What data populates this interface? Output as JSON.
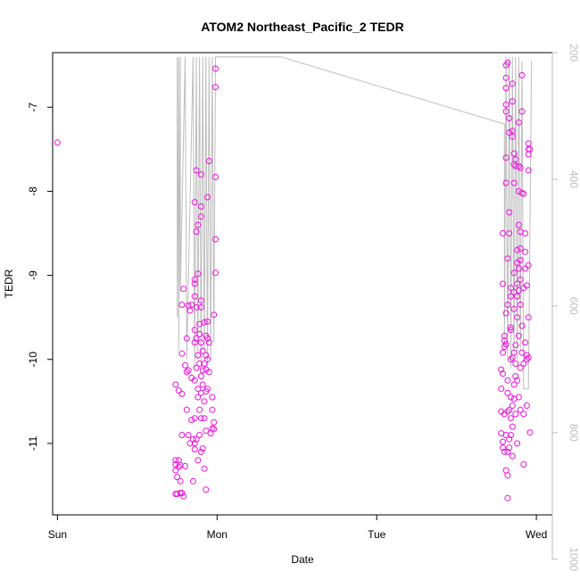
{
  "chart_data": {
    "type": "scatter",
    "title": "ATOM2 Northeast_Pacific_2 TEDR",
    "xlabel": "Date",
    "ylabel": "TEDR",
    "x_ticks": [
      "Sun",
      "Mon",
      "Tue",
      "Wed"
    ],
    "y_ticks": [
      -7,
      -8,
      -9,
      -10,
      -11
    ],
    "y_right_ticks": [
      200,
      400,
      600,
      800,
      1000
    ],
    "xlim": [
      -0.03,
      3.1
    ],
    "ylim": [
      -11.85,
      -6.35
    ],
    "y_right_lim": [
      930,
      200
    ],
    "grid": false,
    "colors": {
      "points": "#ee11dd",
      "line": "#bdbdbd",
      "axis": "#000000",
      "right_axis": "#bdbdbd"
    },
    "series": [
      {
        "values": [
          [
            0.0,
            -7.42
          ],
          [
            0.74,
            -10.3
          ],
          [
            0.74,
            -11.2
          ],
          [
            0.74,
            -11.25
          ],
          [
            0.74,
            -11.32
          ],
          [
            0.74,
            -11.6
          ],
          [
            0.75,
            -11.4
          ],
          [
            0.75,
            -11.6
          ],
          [
            0.76,
            -10.37
          ],
          [
            0.76,
            -11.2
          ],
          [
            0.76,
            -11.28
          ],
          [
            0.77,
            -11.45
          ],
          [
            0.77,
            -11.59
          ],
          [
            0.77,
            -11.26
          ],
          [
            0.78,
            -9.93
          ],
          [
            0.78,
            -9.35
          ],
          [
            0.78,
            -10.41
          ],
          [
            0.78,
            -10.9
          ],
          [
            0.78,
            -11.59
          ],
          [
            0.79,
            -11.63
          ],
          [
            0.79,
            -9.16
          ],
          [
            0.8,
            -10.07
          ],
          [
            0.8,
            -11.27
          ],
          [
            0.81,
            -9.75
          ],
          [
            0.81,
            -10.15
          ],
          [
            0.81,
            -10.6
          ],
          [
            0.82,
            -9.36
          ],
          [
            0.82,
            -10.13
          ],
          [
            0.82,
            -10.9
          ],
          [
            0.83,
            -9.42
          ],
          [
            0.83,
            -11.0
          ],
          [
            0.84,
            -10.72
          ],
          [
            0.84,
            -9.35
          ],
          [
            0.84,
            -10.22
          ],
          [
            0.85,
            -11.45
          ],
          [
            0.85,
            -10.95
          ],
          [
            0.86,
            -8.13
          ],
          [
            0.86,
            -9.05
          ],
          [
            0.86,
            -9.25
          ],
          [
            0.86,
            -9.65
          ],
          [
            0.86,
            -9.8
          ],
          [
            0.86,
            -10.25
          ],
          [
            0.86,
            -10.7
          ],
          [
            0.86,
            -11.0
          ],
          [
            0.86,
            -11.07
          ],
          [
            0.86,
            -9.1
          ],
          [
            0.87,
            -7.75
          ],
          [
            0.87,
            -8.48
          ],
          [
            0.87,
            -9.38
          ],
          [
            0.87,
            -9.75
          ],
          [
            0.87,
            -10.1
          ],
          [
            0.87,
            -10.95
          ],
          [
            0.88,
            -8.4
          ],
          [
            0.88,
            -8.98
          ],
          [
            0.88,
            -9.95
          ],
          [
            0.88,
            -10.35
          ],
          [
            0.88,
            -10.45
          ],
          [
            0.88,
            -11.2
          ],
          [
            0.89,
            -9.58
          ],
          [
            0.89,
            -9.7
          ],
          [
            0.89,
            -10.05
          ],
          [
            0.89,
            -10.6
          ],
          [
            0.89,
            -10.9
          ],
          [
            0.9,
            -7.8
          ],
          [
            0.9,
            -8.18
          ],
          [
            0.9,
            -8.3
          ],
          [
            0.9,
            -9.3
          ],
          [
            0.9,
            -9.38
          ],
          [
            0.9,
            -9.8
          ],
          [
            0.9,
            -10.2
          ],
          [
            0.9,
            -10.4
          ],
          [
            0.9,
            -10.7
          ],
          [
            0.9,
            -11.1
          ],
          [
            0.91,
            -9.9
          ],
          [
            0.91,
            -10.13
          ],
          [
            0.91,
            -10.3
          ],
          [
            0.91,
            -11.06
          ],
          [
            0.92,
            -9.56
          ],
          [
            0.92,
            -10.05
          ],
          [
            0.92,
            -10.5
          ],
          [
            0.92,
            -10.7
          ],
          [
            0.92,
            -11.3
          ],
          [
            0.93,
            -9.72
          ],
          [
            0.93,
            -10.12
          ],
          [
            0.93,
            -10.38
          ],
          [
            0.93,
            -9.95
          ],
          [
            0.93,
            -11.55
          ],
          [
            0.93,
            -10.85
          ],
          [
            0.94,
            -8.07
          ],
          [
            0.94,
            -9.55
          ],
          [
            0.94,
            -9.75
          ],
          [
            0.94,
            -10.0
          ],
          [
            0.94,
            -10.35
          ],
          [
            0.95,
            -7.64
          ],
          [
            0.95,
            -9.8
          ],
          [
            0.95,
            -10.15
          ],
          [
            0.96,
            -10.88
          ],
          [
            0.97,
            -10.45
          ],
          [
            0.97,
            -10.82
          ],
          [
            0.97,
            -10.6
          ],
          [
            0.98,
            -9.47
          ],
          [
            0.98,
            -10.75
          ],
          [
            0.98,
            -10.83
          ],
          [
            0.99,
            -6.76
          ],
          [
            0.99,
            -7.83
          ],
          [
            0.99,
            -8.57
          ],
          [
            0.99,
            -8.97
          ],
          [
            0.99,
            -6.54
          ],
          [
            2.78,
            -10.12
          ],
          [
            2.78,
            -10.35
          ],
          [
            2.78,
            -10.62
          ],
          [
            2.78,
            -10.88
          ],
          [
            2.79,
            -10.98
          ],
          [
            2.79,
            -11.05
          ],
          [
            2.79,
            -10.17
          ],
          [
            2.79,
            -9.92
          ],
          [
            2.79,
            -9.1
          ],
          [
            2.79,
            -8.5
          ],
          [
            2.8,
            -9.72
          ],
          [
            2.8,
            -9.78
          ],
          [
            2.8,
            -9.85
          ],
          [
            2.8,
            -10.65
          ],
          [
            2.8,
            -11.1
          ],
          [
            2.81,
            -6.97
          ],
          [
            2.81,
            -6.65
          ],
          [
            2.81,
            -6.77
          ],
          [
            2.81,
            -6.5
          ],
          [
            2.81,
            -7.05
          ],
          [
            2.81,
            -7.9
          ],
          [
            2.81,
            -7.6
          ],
          [
            2.81,
            -9.45
          ],
          [
            2.81,
            -9.82
          ],
          [
            2.81,
            -10.9
          ],
          [
            2.81,
            -11.32
          ],
          [
            2.82,
            -11.65
          ],
          [
            2.82,
            -11.38
          ],
          [
            2.82,
            -11.1
          ],
          [
            2.82,
            -10.62
          ],
          [
            2.82,
            -10.4
          ],
          [
            2.82,
            -10.25
          ],
          [
            2.82,
            -9.35
          ],
          [
            2.82,
            -8.8
          ],
          [
            2.82,
            -6.47
          ],
          [
            2.83,
            -8.5
          ],
          [
            2.83,
            -8.25
          ],
          [
            2.83,
            -7.13
          ],
          [
            2.83,
            -7.3
          ],
          [
            2.83,
            -11.05
          ],
          [
            2.83,
            -10.95
          ],
          [
            2.83,
            -10.6
          ],
          [
            2.84,
            -10.45
          ],
          [
            2.84,
            -10.0
          ],
          [
            2.84,
            -9.15
          ],
          [
            2.84,
            -9.25
          ],
          [
            2.84,
            -9.65
          ],
          [
            2.84,
            -9.62
          ],
          [
            2.84,
            -10.7
          ],
          [
            2.84,
            -10.9
          ],
          [
            2.85,
            -7.35
          ],
          [
            2.85,
            -7.28
          ],
          [
            2.85,
            -6.93
          ],
          [
            2.85,
            -6.72
          ],
          [
            2.85,
            -10.55
          ],
          [
            2.85,
            -10.8
          ],
          [
            2.85,
            -11.15
          ],
          [
            2.85,
            -9.98
          ],
          [
            2.86,
            -10.3
          ],
          [
            2.86,
            -10.47
          ],
          [
            2.86,
            -9.92
          ],
          [
            2.86,
            -9.4
          ],
          [
            2.86,
            -9.2
          ],
          [
            2.86,
            -8.97
          ],
          [
            2.86,
            -7.55
          ],
          [
            2.86,
            -7.68
          ],
          [
            2.86,
            -7.9
          ],
          [
            2.87,
            -7.7
          ],
          [
            2.87,
            -7.62
          ],
          [
            2.87,
            -9.83
          ],
          [
            2.87,
            -10.05
          ],
          [
            2.87,
            -10.2
          ],
          [
            2.87,
            -10.65
          ],
          [
            2.88,
            -11.0
          ],
          [
            2.88,
            -9.1
          ],
          [
            2.88,
            -9.25
          ],
          [
            2.88,
            -8.7
          ],
          [
            2.88,
            -8.85
          ],
          [
            2.88,
            -9.5
          ],
          [
            2.88,
            -10.25
          ],
          [
            2.89,
            -7.18
          ],
          [
            2.89,
            -7.7
          ],
          [
            2.89,
            -8.0
          ],
          [
            2.89,
            -8.4
          ],
          [
            2.89,
            -8.92
          ],
          [
            2.89,
            -9.18
          ],
          [
            2.89,
            -9.72
          ],
          [
            2.89,
            -10.45
          ],
          [
            2.9,
            -7.72
          ],
          [
            2.9,
            -8.48
          ],
          [
            2.9,
            -8.68
          ],
          [
            2.9,
            -8.82
          ],
          [
            2.9,
            -9.05
          ],
          [
            2.9,
            -9.35
          ],
          [
            2.9,
            -10.1
          ],
          [
            2.9,
            -10.6
          ],
          [
            2.91,
            -6.62
          ],
          [
            2.91,
            -7.05
          ],
          [
            2.91,
            -8.02
          ],
          [
            2.91,
            -9.6
          ],
          [
            2.91,
            -9.92
          ],
          [
            2.92,
            -8.03
          ],
          [
            2.92,
            -9.15
          ],
          [
            2.92,
            -10.05
          ],
          [
            2.92,
            -10.65
          ],
          [
            2.92,
            -11.25
          ],
          [
            2.93,
            -9.8
          ],
          [
            2.93,
            -8.92
          ],
          [
            2.93,
            -8.5
          ],
          [
            2.93,
            -8.72
          ],
          [
            2.94,
            -10.55
          ],
          [
            2.94,
            -9.95
          ],
          [
            2.94,
            -9.12
          ],
          [
            2.94,
            -10.0
          ],
          [
            2.95,
            -8.88
          ],
          [
            2.95,
            -7.75
          ],
          [
            2.95,
            -7.5
          ],
          [
            2.95,
            -7.56
          ],
          [
            2.95,
            -9.98
          ],
          [
            2.95,
            -9.5
          ],
          [
            2.95,
            -7.43
          ],
          [
            2.96,
            -10.87
          ],
          [
            2.96,
            -7.5
          ]
        ]
      }
    ],
    "line_series": {
      "values": [
        [
          0.75,
          -6.4
        ],
        [
          0.75,
          -9.5
        ],
        [
          0.76,
          -6.4
        ],
        [
          0.76,
          -9.9
        ],
        [
          0.77,
          -6.4
        ],
        [
          0.77,
          -9.2
        ],
        [
          0.8,
          -6.4
        ],
        [
          0.81,
          -10.0
        ],
        [
          0.85,
          -6.4
        ],
        [
          0.86,
          -10.1
        ],
        [
          0.87,
          -6.4
        ],
        [
          0.88,
          -10.0
        ],
        [
          0.89,
          -6.4
        ],
        [
          0.9,
          -10.1
        ],
        [
          0.91,
          -6.4
        ],
        [
          0.92,
          -9.9
        ],
        [
          0.93,
          -6.4
        ],
        [
          0.94,
          -10.1
        ],
        [
          0.95,
          -6.4
        ],
        [
          0.96,
          -10.0
        ],
        [
          0.97,
          -6.4
        ],
        [
          0.98,
          -9.8
        ],
        [
          0.99,
          -6.4
        ],
        [
          1.0,
          -6.4
        ],
        [
          1.4,
          -6.4
        ],
        [
          2.8,
          -7.2
        ],
        [
          2.8,
          -9.85
        ],
        [
          2.81,
          -6.4
        ],
        [
          2.82,
          -10.0
        ],
        [
          2.83,
          -6.4
        ],
        [
          2.84,
          -10.1
        ],
        [
          2.85,
          -6.4
        ],
        [
          2.86,
          -9.95
        ],
        [
          2.87,
          -6.4
        ],
        [
          2.88,
          -10.0
        ],
        [
          2.89,
          -6.4
        ],
        [
          2.9,
          -9.9
        ],
        [
          2.91,
          -6.45
        ],
        [
          2.92,
          -10.35
        ],
        [
          2.95,
          -10.35
        ],
        [
          2.97,
          -6.45
        ]
      ]
    }
  }
}
